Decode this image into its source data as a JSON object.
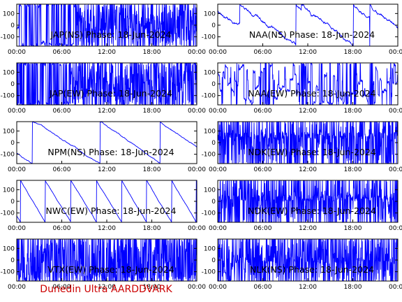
{
  "chart_data": [
    {
      "type": "line",
      "title": "JAP(NS) Phase: 18-Jun-2024",
      "x_ticks": [
        "00:00",
        "06:00",
        "12:00",
        "18:00",
        "00:00"
      ],
      "y_ticks": [
        "100",
        "0",
        "-100"
      ],
      "ylim": [
        -180,
        180
      ],
      "series_color": "#0000ff",
      "pattern": "dense",
      "seed": 1,
      "dense_from": 0.33,
      "dense_density": 0.95,
      "wrap_density": 0.25
    },
    {
      "type": "line",
      "title": "NAA(NS) Phase: 18-Jun-2024",
      "x_ticks": [
        "00:00",
        "06:00",
        "12:00",
        "18:00",
        "00:00"
      ],
      "y_ticks": [
        "100",
        "0",
        "-100"
      ],
      "ylim": [
        -180,
        180
      ],
      "series_color": "#0000ff",
      "pattern": "drift",
      "seed": 2,
      "slope": -1200,
      "noise": 12,
      "wrap_density": 0.005
    },
    {
      "type": "line",
      "title": "JAP(EW) Phase: 18-Jun-2024",
      "x_ticks": [
        "00:00",
        "06:00",
        "12:00",
        "18:00",
        "00:00"
      ],
      "y_ticks": [
        "100",
        "0",
        "-100"
      ],
      "ylim": [
        -180,
        180
      ],
      "series_color": "#0000ff",
      "pattern": "dense",
      "seed": 3,
      "dense_from": 0.3,
      "dense_density": 0.9,
      "wrap_density": 0.35
    },
    {
      "type": "line",
      "title": "NAA(EW) Phase: 18-Jun-2024",
      "x_ticks": [
        "00:00",
        "06:00",
        "12:00",
        "18:00",
        "00:00"
      ],
      "y_ticks": [
        "100",
        "0",
        "-100"
      ],
      "ylim": [
        -180,
        180
      ],
      "series_color": "#0000ff",
      "pattern": "mixed",
      "seed": 4,
      "noise": 25,
      "wrap_density": 0.05
    },
    {
      "type": "line",
      "title": "NPM(NS) Phase: 18-Jun-2024",
      "x_ticks": [
        "00:00",
        "06:00",
        "12:00",
        "18:00",
        "00:00"
      ],
      "y_ticks": [
        "100",
        "0",
        "-100"
      ],
      "ylim": [
        -180,
        180
      ],
      "series_color": "#0000ff",
      "pattern": "drift",
      "seed": 5,
      "slope": -1000,
      "noise": 4,
      "wrap_density": 0.002
    },
    {
      "type": "line",
      "title": "NDK(EW) Phase: 18-Jun-2024",
      "x_ticks": [
        "00:00",
        "06:00",
        "12:00",
        "18:00",
        "00:00"
      ],
      "y_ticks": [
        "100",
        "0",
        "-100"
      ],
      "ylim": [
        -180,
        180
      ],
      "series_color": "#0000ff",
      "pattern": "dense",
      "seed": 6,
      "dense_from": 0.0,
      "dense_density": 0.55,
      "wrap_density": 0.35
    },
    {
      "type": "line",
      "title": "NWC(EW) Phase: 18-Jun-2024",
      "x_ticks": [
        "00:00",
        "06:00",
        "12:00",
        "18:00",
        "00:00"
      ],
      "y_ticks": [
        "100",
        "0",
        "-100"
      ],
      "ylim": [
        -180,
        180
      ],
      "series_color": "#0000ff",
      "pattern": "drift",
      "seed": 7,
      "slope": -2600,
      "noise": 3,
      "wrap_density": 0.0
    },
    {
      "type": "line",
      "title": "NDK(EW) Phase: 18-Jun-2024",
      "x_ticks": [
        "00:00",
        "06:00",
        "12:00",
        "18:00",
        "00:00"
      ],
      "y_ticks": [
        "100",
        "0",
        "-100"
      ],
      "ylim": [
        -180,
        180
      ],
      "series_color": "#0000ff",
      "pattern": "dense",
      "seed": 8,
      "dense_from": 0.0,
      "dense_density": 0.55,
      "wrap_density": 0.35
    },
    {
      "type": "line",
      "title": "VTX(EW) Phase: 18-Jun-2024",
      "x_ticks": [
        "00:00",
        "06:00",
        "12:00",
        "18:00",
        "00:00"
      ],
      "y_ticks": [
        "100",
        "0",
        "-100"
      ],
      "ylim": [
        -180,
        180
      ],
      "series_color": "#0000ff",
      "pattern": "dense",
      "seed": 9,
      "dense_from": 0.0,
      "dense_density": 0.75,
      "wrap_density": 0.4
    },
    {
      "type": "line",
      "title": "NLK(NS) Phase: 18-Jun-2024",
      "x_ticks": [
        "00:00",
        "06:00",
        "12:00",
        "18:00",
        "00:00"
      ],
      "y_ticks": [
        "100",
        "0",
        "-100"
      ],
      "ylim": [
        -180,
        180
      ],
      "series_color": "#0000ff",
      "pattern": "dense",
      "seed": 10,
      "dense_from": 0.0,
      "dense_density": 0.75,
      "wrap_density": 0.4
    }
  ],
  "footer": {
    "text": "Dunedin Ultra AARDDVARK",
    "color": "#cc0000"
  }
}
